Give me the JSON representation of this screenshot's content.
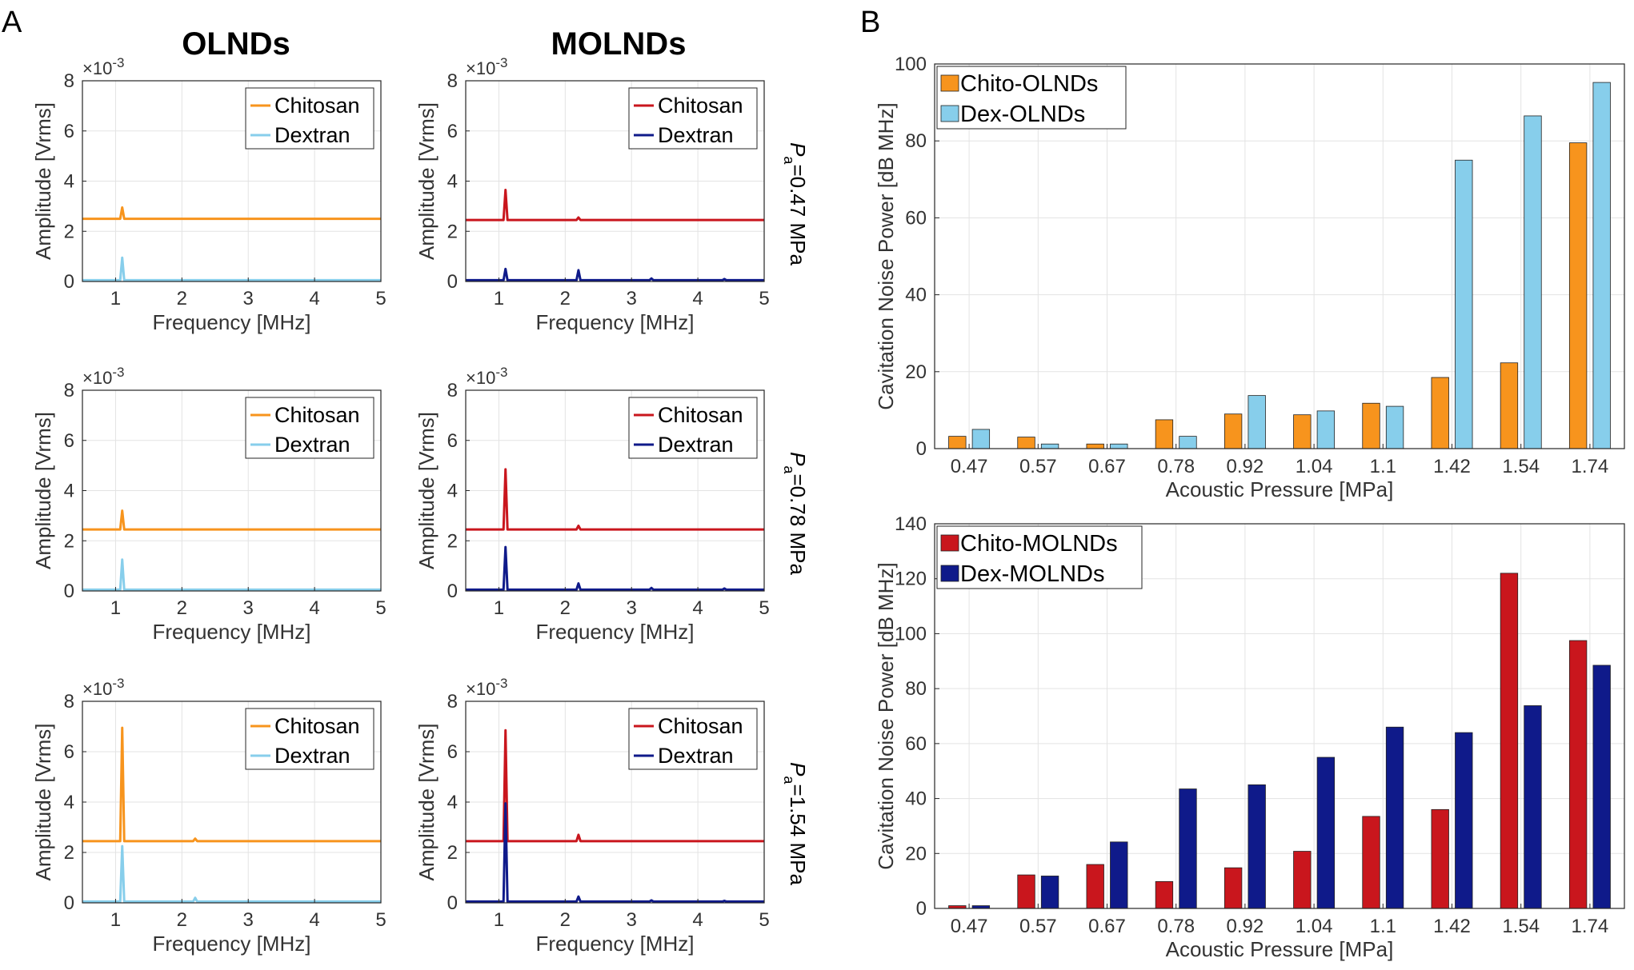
{
  "panel_labels": {
    "a": "A",
    "b": "B"
  },
  "column_titles": {
    "left": "OLNDs",
    "right": "MOLNDs"
  },
  "row_labels": [
    {
      "symbol": "P",
      "subscript": "a",
      "value": "=0.47 MPa"
    },
    {
      "symbol": "P",
      "subscript": "a",
      "value": "=0.78 MPa"
    },
    {
      "symbol": "P",
      "subscript": "a",
      "value": "=1.54 MPa"
    }
  ],
  "colors": {
    "chitosan_olnd": "#f7941d",
    "dextran_olnd": "#87ceeb",
    "chitosan_molnd": "#c9161d",
    "dextran_molnd": "#0f1a8a"
  },
  "chart_data": [
    {
      "id": "spec_olnd_047",
      "type": "line",
      "xlabel": "Frequency [MHz]",
      "ylabel": "Amplitude [Vrms]",
      "yexp": "×10",
      "yexp_power": "-3",
      "xlim": [
        0.5,
        5
      ],
      "ylim": [
        0,
        8
      ],
      "xticks": [
        1,
        2,
        3,
        4,
        5
      ],
      "yticks": [
        0,
        2,
        4,
        6,
        8
      ],
      "grid": true,
      "legend": "top-right",
      "series": [
        {
          "name": "Chitosan",
          "color": "#f7941d",
          "baseline": 2.5,
          "peaks": [
            [
              1.1,
              2.95
            ]
          ]
        },
        {
          "name": "Dextran",
          "color": "#87ceeb",
          "baseline": 0.05,
          "peaks": [
            [
              1.1,
              0.95
            ]
          ]
        }
      ]
    },
    {
      "id": "spec_molnd_047",
      "type": "line",
      "xlabel": "Frequency [MHz]",
      "ylabel": "Amplitude [Vrms]",
      "yexp": "×10",
      "yexp_power": "-3",
      "xlim": [
        0.5,
        5
      ],
      "ylim": [
        0,
        8
      ],
      "xticks": [
        1,
        2,
        3,
        4,
        5
      ],
      "yticks": [
        0,
        2,
        4,
        6,
        8
      ],
      "grid": true,
      "legend": "top-right",
      "series": [
        {
          "name": "Chitosan",
          "color": "#c9161d",
          "baseline": 2.45,
          "peaks": [
            [
              1.1,
              3.65
            ],
            [
              2.2,
              2.55
            ]
          ]
        },
        {
          "name": "Dextran",
          "color": "#0f1a8a",
          "baseline": 0.05,
          "peaks": [
            [
              1.1,
              0.5
            ],
            [
              2.2,
              0.45
            ],
            [
              3.3,
              0.12
            ],
            [
              4.4,
              0.1
            ]
          ]
        }
      ]
    },
    {
      "id": "spec_olnd_078",
      "type": "line",
      "xlabel": "Frequency [MHz]",
      "ylabel": "Amplitude [Vrms]",
      "yexp": "×10",
      "yexp_power": "-3",
      "xlim": [
        0.5,
        5
      ],
      "ylim": [
        0,
        8
      ],
      "xticks": [
        1,
        2,
        3,
        4,
        5
      ],
      "yticks": [
        0,
        2,
        4,
        6,
        8
      ],
      "grid": true,
      "legend": "top-right",
      "series": [
        {
          "name": "Chitosan",
          "color": "#f7941d",
          "baseline": 2.45,
          "peaks": [
            [
              1.1,
              3.2
            ]
          ]
        },
        {
          "name": "Dextran",
          "color": "#87ceeb",
          "baseline": 0.05,
          "peaks": [
            [
              1.1,
              1.25
            ]
          ]
        }
      ]
    },
    {
      "id": "spec_molnd_078",
      "type": "line",
      "xlabel": "Frequency [MHz]",
      "ylabel": "Amplitude [Vrms]",
      "yexp": "×10",
      "yexp_power": "-3",
      "xlim": [
        0.5,
        5
      ],
      "ylim": [
        0,
        8
      ],
      "xticks": [
        1,
        2,
        3,
        4,
        5
      ],
      "yticks": [
        0,
        2,
        4,
        6,
        8
      ],
      "grid": true,
      "legend": "top-right",
      "series": [
        {
          "name": "Chitosan",
          "color": "#c9161d",
          "baseline": 2.45,
          "peaks": [
            [
              1.1,
              4.85
            ],
            [
              2.2,
              2.6
            ]
          ]
        },
        {
          "name": "Dextran",
          "color": "#0f1a8a",
          "baseline": 0.05,
          "peaks": [
            [
              1.1,
              1.75
            ],
            [
              2.2,
              0.3
            ],
            [
              3.3,
              0.12
            ],
            [
              4.4,
              0.1
            ]
          ]
        }
      ]
    },
    {
      "id": "spec_olnd_154",
      "type": "line",
      "xlabel": "Frequency [MHz]",
      "ylabel": "Amplitude [Vrms]",
      "yexp": "×10",
      "yexp_power": "-3",
      "xlim": [
        0.5,
        5
      ],
      "ylim": [
        0,
        8
      ],
      "xticks": [
        1,
        2,
        3,
        4,
        5
      ],
      "yticks": [
        0,
        2,
        4,
        6,
        8
      ],
      "grid": true,
      "legend": "top-right",
      "series": [
        {
          "name": "Chitosan",
          "color": "#f7941d",
          "baseline": 2.45,
          "peaks": [
            [
              1.1,
              6.95
            ],
            [
              2.2,
              2.55
            ]
          ]
        },
        {
          "name": "Dextran",
          "color": "#87ceeb",
          "baseline": 0.05,
          "peaks": [
            [
              1.1,
              2.25
            ],
            [
              2.2,
              0.2
            ]
          ]
        }
      ]
    },
    {
      "id": "spec_molnd_154",
      "type": "line",
      "xlabel": "Frequency [MHz]",
      "ylabel": "Amplitude [Vrms]",
      "yexp": "×10",
      "yexp_power": "-3",
      "xlim": [
        0.5,
        5
      ],
      "ylim": [
        0,
        8
      ],
      "xticks": [
        1,
        2,
        3,
        4,
        5
      ],
      "yticks": [
        0,
        2,
        4,
        6,
        8
      ],
      "grid": true,
      "legend": "top-right",
      "series": [
        {
          "name": "Chitosan",
          "color": "#c9161d",
          "baseline": 2.45,
          "peaks": [
            [
              1.1,
              6.85
            ],
            [
              2.2,
              2.7
            ]
          ]
        },
        {
          "name": "Dextran",
          "color": "#0f1a8a",
          "baseline": 0.05,
          "peaks": [
            [
              1.1,
              3.95
            ],
            [
              2.2,
              0.25
            ],
            [
              3.3,
              0.1
            ],
            [
              4.4,
              0.08
            ]
          ]
        }
      ]
    },
    {
      "id": "bar_olnd",
      "type": "bar",
      "xlabel": "Acoustic Pressure [MPa]",
      "ylabel": "Cavitation Noise Power [dB MHz]",
      "ylim": [
        0,
        100
      ],
      "yticks": [
        0,
        20,
        40,
        60,
        80,
        100
      ],
      "grid": true,
      "legend": "top-left",
      "categories": [
        "0.47",
        "0.57",
        "0.67",
        "0.78",
        "0.92",
        "1.04",
        "1.1",
        "1.42",
        "1.54",
        "1.74"
      ],
      "series": [
        {
          "name": "Chito-OLNDs",
          "color": "#f7941d",
          "values": [
            3.2,
            3.0,
            1.2,
            7.5,
            9.0,
            8.8,
            11.8,
            18.5,
            22.3,
            79.5
          ]
        },
        {
          "name": "Dex-OLNDs",
          "color": "#87ceeb",
          "values": [
            5.0,
            1.2,
            1.2,
            3.2,
            13.8,
            9.8,
            11.0,
            75.0,
            86.5,
            95.2
          ]
        }
      ]
    },
    {
      "id": "bar_molnd",
      "type": "bar",
      "xlabel": "Acoustic Pressure [MPa]",
      "ylabel": "Cavitation Noise Power [dB MHz]",
      "ylim": [
        0,
        140
      ],
      "yticks": [
        0,
        20,
        40,
        60,
        80,
        100,
        120,
        140
      ],
      "grid": true,
      "legend": "top-left",
      "categories": [
        "0.47",
        "0.57",
        "0.67",
        "0.78",
        "0.92",
        "1.04",
        "1.1",
        "1.42",
        "1.54",
        "1.74"
      ],
      "series": [
        {
          "name": "Chito-MOLNDs",
          "color": "#c9161d",
          "values": [
            1.0,
            12.2,
            16.0,
            9.8,
            14.8,
            20.8,
            33.5,
            36.0,
            122.0,
            97.5
          ]
        },
        {
          "name": "Dex-MOLNDs",
          "color": "#0f1a8a",
          "values": [
            1.0,
            11.8,
            24.2,
            43.5,
            45.0,
            55.0,
            66.0,
            64.0,
            73.8,
            88.5
          ]
        }
      ]
    }
  ]
}
